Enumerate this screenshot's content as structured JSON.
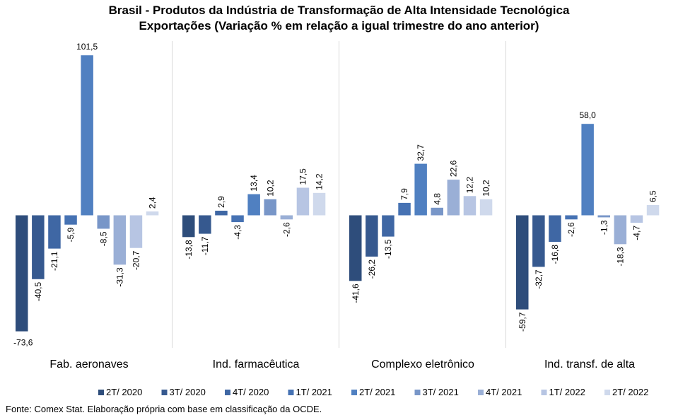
{
  "chart_data": {
    "type": "bar",
    "title": "Brasil - Produtos da Indústria de Transformação  de Alta Intensidade Tecnológica",
    "subtitle": "Exportações (Variação % em relação a igual trimestre do ano anterior)",
    "xlabel": "",
    "ylabel": "",
    "ylim": [
      -80,
      110
    ],
    "grid": false,
    "legend_position": "bottom",
    "categories": [
      "Fab. aeronaves",
      "Ind. farmacêutica",
      "Complexo eletrônico",
      "Ind. transf. de alta"
    ],
    "series": [
      {
        "name": "2T/ 2020",
        "color": "#2e4d7b",
        "values": [
          -73.6,
          -13.8,
          -41.6,
          -59.7
        ],
        "labels": [
          "-73,6",
          "-13,8",
          "-41,6",
          "-59,7"
        ]
      },
      {
        "name": "3T/ 2020",
        "color": "#36598f",
        "values": [
          -40.5,
          -11.7,
          -26.2,
          -32.7
        ],
        "labels": [
          "-40,5",
          "-11,7",
          "-26,2",
          "-32,7"
        ]
      },
      {
        "name": "4T/ 2020",
        "color": "#3f67a4",
        "values": [
          -21.1,
          2.9,
          -13.5,
          -16.8
        ],
        "labels": [
          "-21,1",
          "2,9",
          "-13,5",
          "-16,8"
        ]
      },
      {
        "name": "1T/ 2021",
        "color": "#4672b3",
        "values": [
          -5.9,
          -4.3,
          7.9,
          -2.6
        ],
        "labels": [
          "-5,9",
          "-4,3",
          "7,9",
          "-2,6"
        ]
      },
      {
        "name": "2T/ 2021",
        "color": "#5080c1",
        "values": [
          101.5,
          13.4,
          32.7,
          58.0
        ],
        "labels": [
          "101,5",
          "13,4",
          "32,7",
          "58,0"
        ]
      },
      {
        "name": "3T/ 2021",
        "color": "#7896c8",
        "values": [
          -8.5,
          10.2,
          4.8,
          -1.3
        ],
        "labels": [
          "-8,5",
          "10,2",
          "4,8",
          "-1,3"
        ]
      },
      {
        "name": "4T/ 2021",
        "color": "#9aafd6",
        "values": [
          -31.3,
          -2.6,
          22.6,
          -18.3
        ],
        "labels": [
          "-31,3",
          "-2,6",
          "22,6",
          "-18,3"
        ]
      },
      {
        "name": "1T/ 2022",
        "color": "#b7c5e3",
        "values": [
          -20.7,
          17.5,
          12.2,
          -4.7
        ],
        "labels": [
          "-20,7",
          "17,5",
          "12,2",
          "-4,7"
        ]
      },
      {
        "name": "2T/ 2022",
        "color": "#cfd9ec",
        "values": [
          2.4,
          14.2,
          10.2,
          6.5
        ],
        "labels": [
          "2,4",
          "14,2",
          "10,2",
          "6,5"
        ]
      }
    ],
    "source": "Fonte: Comex Stat. Elaboração própria com base em classificação da OCDE."
  }
}
